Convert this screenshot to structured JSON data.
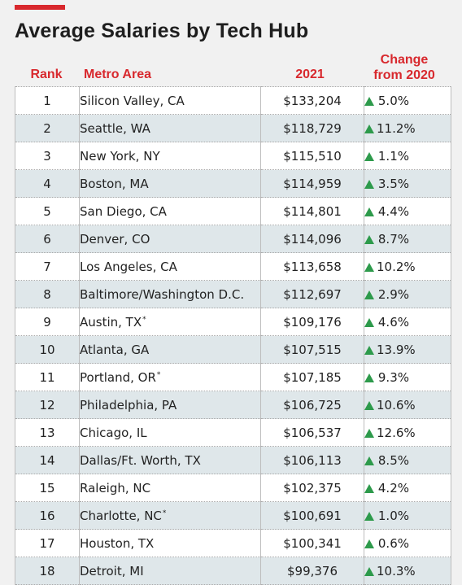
{
  "chart_data": {
    "type": "table",
    "title": "Average Salaries by Tech Hub",
    "columns": [
      "Rank",
      "Metro Area",
      "2021",
      "Change from 2020"
    ],
    "change_header_lines": [
      "Change",
      "from 2020"
    ],
    "colors": {
      "accent": "#d8282d",
      "up_arrow": "#2d9a4b",
      "row_alt": "#dfe7ea"
    },
    "rows": [
      {
        "rank": "1",
        "metro": "Silicon Valley, CA",
        "mark": "",
        "salary": "$133,204",
        "change": "5.0%"
      },
      {
        "rank": "2",
        "metro": "Seattle, WA",
        "mark": "",
        "salary": "$118,729",
        "change": "11.2%"
      },
      {
        "rank": "3",
        "metro": "New York, NY",
        "mark": "",
        "salary": "$115,510",
        "change": "1.1%"
      },
      {
        "rank": "4",
        "metro": "Boston, MA",
        "mark": "",
        "salary": "$114,959",
        "change": "3.5%"
      },
      {
        "rank": "5",
        "metro": "San Diego, CA",
        "mark": "",
        "salary": "$114,801",
        "change": "4.4%"
      },
      {
        "rank": "6",
        "metro": "Denver, CO",
        "mark": "",
        "salary": "$114,096",
        "change": "8.7%"
      },
      {
        "rank": "7",
        "metro": "Los Angeles, CA",
        "mark": "",
        "salary": "$113,658",
        "change": "10.2%"
      },
      {
        "rank": "8",
        "metro": "Baltimore/Washington D.C.",
        "mark": "",
        "salary": "$112,697",
        "change": "2.9%"
      },
      {
        "rank": "9",
        "metro": "Austin, TX",
        "mark": "*",
        "salary": "$109,176",
        "change": "4.6%"
      },
      {
        "rank": "10",
        "metro": "Atlanta, GA",
        "mark": "",
        "salary": "$107,515",
        "change": "13.9%"
      },
      {
        "rank": "11",
        "metro": "Portland, OR",
        "mark": "*",
        "salary": "$107,185",
        "change": "9.3%"
      },
      {
        "rank": "12",
        "metro": "Philadelphia, PA",
        "mark": "",
        "salary": "$106,725",
        "change": "10.6%"
      },
      {
        "rank": "13",
        "metro": "Chicago, IL",
        "mark": "",
        "salary": "$106,537",
        "change": "12.6%"
      },
      {
        "rank": "14",
        "metro": "Dallas/Ft. Worth, TX",
        "mark": "",
        "salary": "$106,113",
        "change": "8.5%"
      },
      {
        "rank": "15",
        "metro": "Raleigh, NC",
        "mark": "",
        "salary": "$102,375",
        "change": "4.2%"
      },
      {
        "rank": "16",
        "metro": "Charlotte, NC",
        "mark": "*",
        "salary": "$100,691",
        "change": "1.0%"
      },
      {
        "rank": "17",
        "metro": "Houston, TX",
        "mark": "",
        "salary": "$100,341",
        "change": "0.6%"
      },
      {
        "rank": "18",
        "metro": "Detroit, MI",
        "mark": "",
        "salary": "$99,376",
        "change": "10.3%"
      }
    ]
  }
}
